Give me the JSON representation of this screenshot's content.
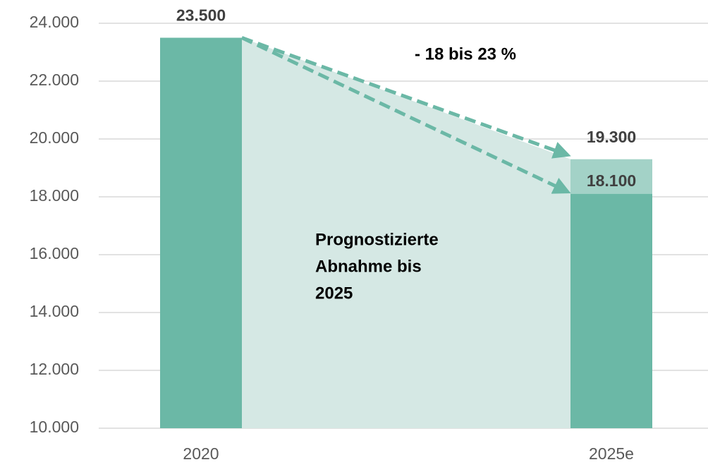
{
  "chart_data": {
    "type": "bar",
    "categories": [
      "2020",
      "2025e"
    ],
    "series": [
      {
        "color": "#6bb8a6",
        "values": [
          23500,
          18100
        ],
        "value_labels": [
          "23.500",
          "18.100"
        ]
      },
      {
        "color": "#a3d2c7",
        "values": [
          null,
          19300
        ],
        "value_labels": [
          null,
          "19.300"
        ]
      }
    ],
    "area_color": "#d5e8e4",
    "arrow_color": "#6bb8a6",
    "ylim": [
      10000,
      24000
    ],
    "yticks": [
      {
        "value": 10000,
        "label": "10.000"
      },
      {
        "value": 12000,
        "label": "12.000"
      },
      {
        "value": 14000,
        "label": "14.000"
      },
      {
        "value": 16000,
        "label": "16.000"
      },
      {
        "value": 18000,
        "label": "18.000"
      },
      {
        "value": 20000,
        "label": "20.000"
      },
      {
        "value": 22000,
        "label": "22.000"
      },
      {
        "value": 24000,
        "label": "24.000"
      }
    ],
    "grid": true,
    "annotation": "- 18 bis 23 %",
    "note_lines": [
      "Prognostizierte",
      "Abnahme bis",
      "2025"
    ]
  }
}
